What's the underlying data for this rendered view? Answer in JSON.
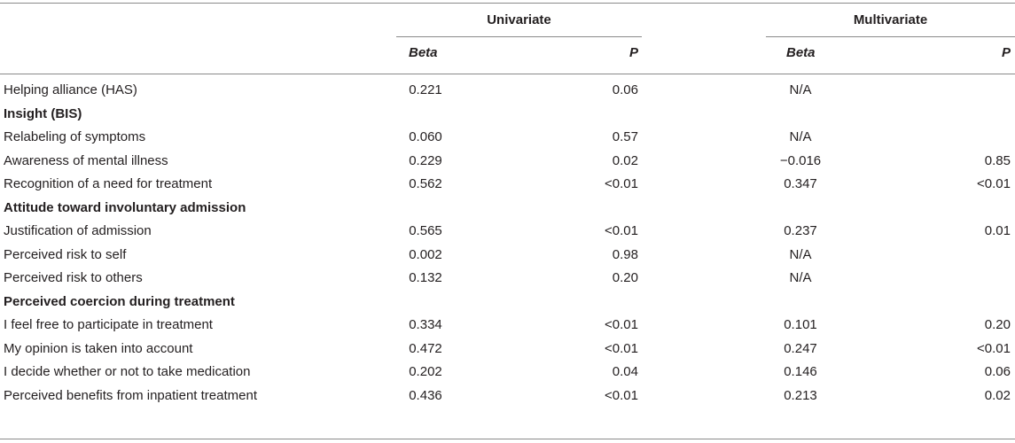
{
  "table": {
    "groups": [
      "Univariate",
      "Multivariate"
    ],
    "subheaders": {
      "univariate_beta": "Beta",
      "univariate_p": "P",
      "multivariate_beta": "Beta",
      "multivariate_p": "P"
    },
    "rows": [
      {
        "label": "Helping alliance (HAS)",
        "is_section": false,
        "u_beta": "0.221",
        "u_p": "0.06",
        "m_beta": "N/A",
        "m_p": ""
      },
      {
        "label": "Insight (BIS)",
        "is_section": true,
        "u_beta": "",
        "u_p": "",
        "m_beta": "",
        "m_p": ""
      },
      {
        "label": "Relabeling of symptoms",
        "is_section": false,
        "u_beta": "0.060",
        "u_p": "0.57",
        "m_beta": "N/A",
        "m_p": ""
      },
      {
        "label": "Awareness of mental illness",
        "is_section": false,
        "u_beta": "0.229",
        "u_p": "0.02",
        "m_beta": "−0.016",
        "m_p": "0.85"
      },
      {
        "label": "Recognition of a need for treatment",
        "is_section": false,
        "u_beta": "0.562",
        "u_p": "<0.01",
        "m_beta": "0.347",
        "m_p": "<0.01"
      },
      {
        "label": "Attitude toward involuntary admission",
        "is_section": true,
        "u_beta": "",
        "u_p": "",
        "m_beta": "",
        "m_p": ""
      },
      {
        "label": "Justification of admission",
        "is_section": false,
        "u_beta": "0.565",
        "u_p": "<0.01",
        "m_beta": "0.237",
        "m_p": "0.01"
      },
      {
        "label": "Perceived risk to self",
        "is_section": false,
        "u_beta": "0.002",
        "u_p": "0.98",
        "m_beta": "N/A",
        "m_p": ""
      },
      {
        "label": "Perceived risk to others",
        "is_section": false,
        "u_beta": "0.132",
        "u_p": "0.20",
        "m_beta": "N/A",
        "m_p": ""
      },
      {
        "label": "Perceived coercion during treatment",
        "is_section": true,
        "u_beta": "",
        "u_p": "",
        "m_beta": "",
        "m_p": ""
      },
      {
        "label": "I feel free to participate in treatment",
        "is_section": false,
        "u_beta": "0.334",
        "u_p": "<0.01",
        "m_beta": "0.101",
        "m_p": "0.20"
      },
      {
        "label": "My opinion is taken into account",
        "is_section": false,
        "u_beta": "0.472",
        "u_p": "<0.01",
        "m_beta": "0.247",
        "m_p": "<0.01"
      },
      {
        "label": "I decide whether or not to take medication",
        "is_section": false,
        "u_beta": "0.202",
        "u_p": "0.04",
        "m_beta": "0.146",
        "m_p": "0.06"
      },
      {
        "label": "Perceived benefits from inpatient treatment",
        "is_section": false,
        "u_beta": "0.436",
        "u_p": "<0.01",
        "m_beta": "0.213",
        "m_p": "0.02"
      }
    ]
  }
}
